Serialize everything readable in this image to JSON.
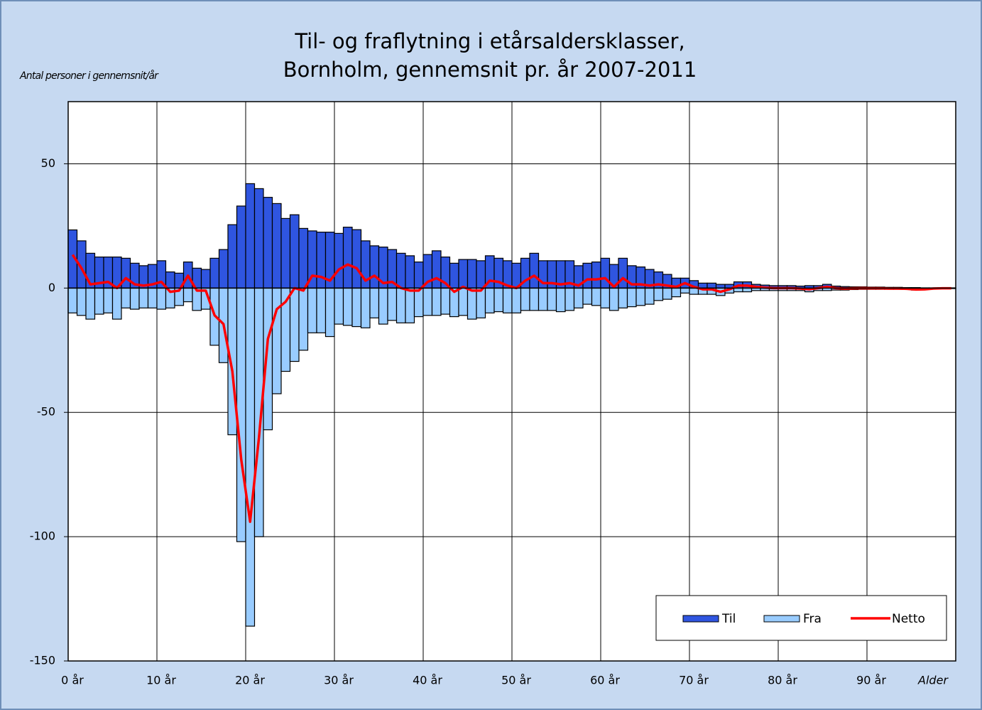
{
  "chart_data": {
    "type": "bar-line",
    "title": [
      "Til- og fraflytning i etårsaldersklasser,",
      "Bornholm, gennemsnit pr. år 2007-2011"
    ],
    "ylabel": "Antal personer i gennemsnit/år",
    "xlabel": "Alder",
    "x": [
      0,
      1,
      2,
      3,
      4,
      5,
      6,
      7,
      8,
      9,
      10,
      11,
      12,
      13,
      14,
      15,
      16,
      17,
      18,
      19,
      20,
      21,
      22,
      23,
      24,
      25,
      26,
      27,
      28,
      29,
      30,
      31,
      32,
      33,
      34,
      35,
      36,
      37,
      38,
      39,
      40,
      41,
      42,
      43,
      44,
      45,
      46,
      47,
      48,
      49,
      50,
      51,
      52,
      53,
      54,
      55,
      56,
      57,
      58,
      59,
      60,
      61,
      62,
      63,
      64,
      65,
      66,
      67,
      68,
      69,
      70,
      71,
      72,
      73,
      74,
      75,
      76,
      77,
      78,
      79,
      80,
      81,
      82,
      83,
      84,
      85,
      86,
      87,
      88,
      89,
      90,
      91,
      92,
      93,
      94,
      95,
      96,
      97,
      98,
      99
    ],
    "series": [
      {
        "name": "Til",
        "kind": "bar",
        "color": "#2f55e0",
        "values": [
          23.4,
          19,
          14,
          12.5,
          12.5,
          12.5,
          12,
          10,
          9,
          9.5,
          11,
          6.5,
          6,
          10.5,
          8,
          7.5,
          12,
          15.5,
          25.5,
          33,
          42,
          40,
          36.5,
          34,
          28,
          29.5,
          24,
          23,
          22.5,
          22.5,
          22,
          24.5,
          23.5,
          19,
          17,
          16.5,
          15.5,
          14,
          13,
          10.5,
          13.5,
          15,
          12.5,
          10,
          11.5,
          11.5,
          11,
          13,
          12,
          11,
          10,
          12,
          14,
          11,
          11,
          11,
          11,
          9,
          10,
          10.5,
          12,
          9.5,
          12,
          9,
          8.5,
          7.5,
          6.5,
          5.5,
          4,
          4,
          3,
          2,
          2,
          1.5,
          1.5,
          2.5,
          2.5,
          1.5,
          1.2,
          1,
          1,
          1,
          0.8,
          1,
          1,
          1.5,
          0.8,
          0.6,
          0.5,
          0.5,
          0.4,
          0.4,
          0.3,
          0.3,
          0.2,
          0.2,
          0.1,
          0.1,
          0.1,
          0.1
        ]
      },
      {
        "name": "Fra",
        "kind": "bar",
        "color": "#99ccff",
        "values": [
          -10,
          -11,
          -12.5,
          -10.5,
          -10,
          -12.5,
          -8,
          -8.5,
          -8,
          -8,
          -8.5,
          -8,
          -7,
          -5.5,
          -9,
          -8.5,
          -23,
          -30,
          -59,
          -102,
          -136,
          -100,
          -57,
          -42.5,
          -33.5,
          -29.5,
          -25,
          -18,
          -18,
          -19.5,
          -14.5,
          -15,
          -15.5,
          -16,
          -12,
          -14.5,
          -13,
          -14,
          -14,
          -11.5,
          -11,
          -11,
          -10.5,
          -11.5,
          -11,
          -12.5,
          -12,
          -10,
          -9.5,
          -10,
          -10,
          -9,
          -9,
          -9,
          -9,
          -9.5,
          -9,
          -8,
          -6.5,
          -7,
          -8,
          -9,
          -8,
          -7.5,
          -7,
          -6.5,
          -5,
          -4.5,
          -3.5,
          -2,
          -2.5,
          -2.5,
          -2.5,
          -3,
          -2,
          -1.5,
          -1.5,
          -1,
          -1,
          -1,
          -1,
          -1,
          -1,
          -1.5,
          -1,
          -1,
          -0.8,
          -0.8,
          -0.6,
          -0.5,
          -0.5,
          -0.5,
          -0.5,
          -0.5,
          -0.5,
          -0.8,
          -0.6,
          -0.3,
          -0.2,
          -0.2
        ]
      },
      {
        "name": "Netto",
        "kind": "line",
        "color": "#ff0000",
        "values": [
          13.4,
          8,
          1.5,
          2,
          2.5,
          0,
          4,
          1.5,
          1,
          1.5,
          2.5,
          -1.5,
          -1,
          5,
          -1,
          -1,
          -11,
          -14.5,
          -33.5,
          -69,
          -94,
          -60,
          -20.5,
          -8.5,
          -5.5,
          0,
          -1,
          5,
          4.5,
          3,
          7.5,
          9.5,
          8,
          3,
          5,
          2,
          2.5,
          0,
          -1,
          -1,
          2.5,
          4,
          2,
          -1.5,
          0.5,
          -1,
          -1,
          3,
          2.5,
          1,
          0,
          3,
          5,
          2,
          2,
          1.5,
          2,
          1,
          3.5,
          3.5,
          4,
          0.5,
          4,
          1.5,
          1.5,
          1,
          1.5,
          1,
          0.5,
          2,
          0.5,
          -0.5,
          -0.5,
          -1.5,
          -0.5,
          1,
          1,
          0.5,
          0.2,
          0,
          0,
          0,
          -0.2,
          -0.5,
          0,
          0.5,
          0,
          -0.2,
          -0.1,
          0,
          -0.1,
          -0.1,
          -0.2,
          -0.2,
          -0.3,
          -0.6,
          -0.5,
          -0.2,
          -0.1,
          -0.1
        ]
      }
    ],
    "xlim": [
      0,
      100
    ],
    "xticks": [
      {
        "value": 0,
        "label": "0 år"
      },
      {
        "value": 10,
        "label": "10 år"
      },
      {
        "value": 20,
        "label": "20 år"
      },
      {
        "value": 30,
        "label": "30 år"
      },
      {
        "value": 40,
        "label": "40 år"
      },
      {
        "value": 50,
        "label": "50 år"
      },
      {
        "value": 60,
        "label": "60 år"
      },
      {
        "value": 70,
        "label": "70 år"
      },
      {
        "value": 80,
        "label": "80 år"
      },
      {
        "value": 90,
        "label": "90 år"
      }
    ],
    "ylim": [
      -150,
      75
    ],
    "yticks": [
      -150,
      -100,
      -50,
      0,
      50
    ],
    "grid": true,
    "legend": "lower right"
  }
}
